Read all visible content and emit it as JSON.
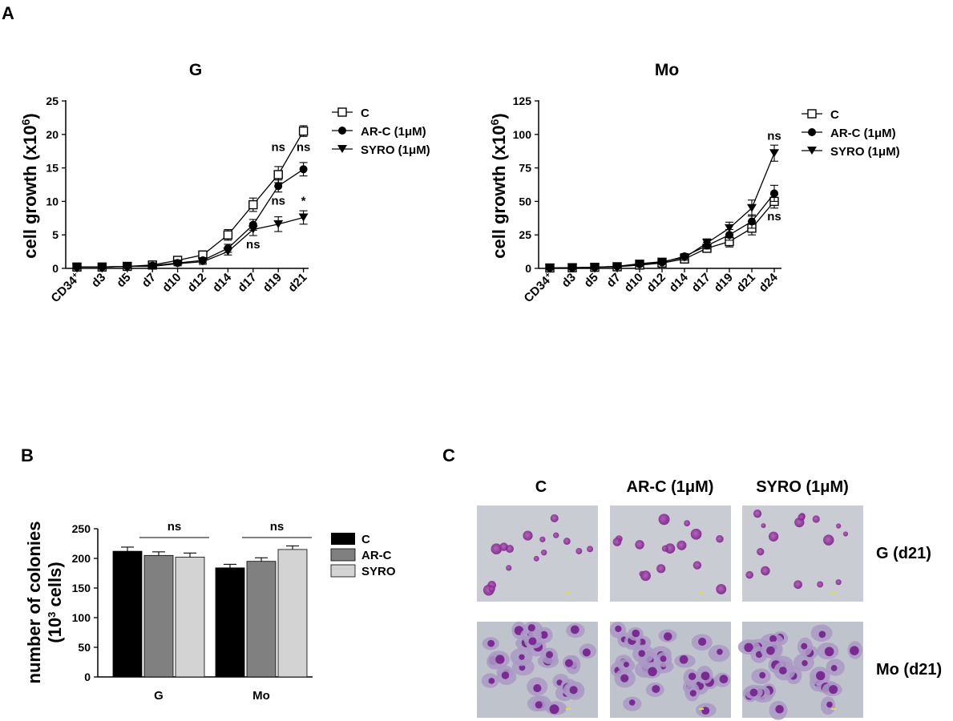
{
  "panel_labels": {
    "a": "A",
    "b": "B",
    "c": "C"
  },
  "chart_data": [
    {
      "id": "growth-g",
      "type": "line",
      "title": "G",
      "ylabel": "cell growth (x10",
      "ylabel_sup": "6",
      "ylabel_end": ")",
      "ylim": [
        0,
        25
      ],
      "yticks": [
        "0",
        "5",
        "10",
        "15",
        "20",
        "25"
      ],
      "categories": [
        "CD34",
        "d3",
        "d5",
        "d7",
        "d10",
        "d12",
        "d14",
        "d17",
        "d19",
        "d21"
      ],
      "category_sup": "+",
      "series": [
        {
          "name": "C",
          "marker": "open-square",
          "values": [
            0.2,
            0.2,
            0.3,
            0.5,
            1.2,
            2.0,
            5.0,
            9.5,
            14.0,
            20.5
          ],
          "errors": [
            0.2,
            0.2,
            0.2,
            0.4,
            0.5,
            0.5,
            0.8,
            1.0,
            1.2,
            0.8
          ]
        },
        {
          "name": "AR-C (1μM)",
          "marker": "filled-circle",
          "values": [
            0.2,
            0.2,
            0.3,
            0.4,
            0.8,
            1.2,
            3.0,
            6.5,
            12.3,
            14.8
          ],
          "errors": [
            0.2,
            0.2,
            0.2,
            0.3,
            0.4,
            0.4,
            0.6,
            0.8,
            0.9,
            1.0
          ]
        },
        {
          "name": "SYRO (1μM)",
          "marker": "filled-triangle-down",
          "values": [
            0.2,
            0.2,
            0.3,
            0.3,
            0.7,
            1.0,
            2.5,
            5.8,
            6.6,
            7.6
          ],
          "errors": [
            0.2,
            0.2,
            0.2,
            0.3,
            0.3,
            0.4,
            0.5,
            0.9,
            1.1,
            1.0
          ]
        }
      ],
      "annotations": [
        {
          "text": "ns",
          "x": "d19",
          "y": 17.5
        },
        {
          "text": "ns",
          "x": "d21",
          "y": 17.5
        },
        {
          "text": "ns",
          "x": "d19",
          "y": 9.5
        },
        {
          "text": "*",
          "x": "d21",
          "y": 9.5
        },
        {
          "text": "ns",
          "x": "d17",
          "y": 3.0
        }
      ]
    },
    {
      "id": "growth-mo",
      "type": "line",
      "title": "Mo",
      "ylabel": "cell growth (x10",
      "ylabel_sup": "6",
      "ylabel_end": ")",
      "ylim": [
        0,
        125
      ],
      "yticks": [
        "0",
        "25",
        "50",
        "75",
        "100",
        "125"
      ],
      "categories": [
        "CD34",
        "d3",
        "d5",
        "d7",
        "d10",
        "d12",
        "d14",
        "d17",
        "d19",
        "d21",
        "d24"
      ],
      "category_sup": "+",
      "series": [
        {
          "name": "C",
          "marker": "open-square",
          "values": [
            0.3,
            0.5,
            0.8,
            1.2,
            2.5,
            4.0,
            7.0,
            15.0,
            20.0,
            30.0,
            50.0
          ],
          "errors": [
            0.3,
            0.4,
            0.5,
            0.6,
            1.0,
            1.2,
            2.0,
            2.5,
            4.0,
            5.0,
            5.0
          ]
        },
        {
          "name": "AR-C  (1μM)",
          "marker": "filled-circle",
          "values": [
            0.3,
            0.5,
            0.8,
            1.5,
            3.0,
            4.5,
            9.0,
            17.0,
            25.0,
            35.0,
            56.0
          ],
          "errors": [
            0.3,
            0.4,
            0.5,
            0.7,
            1.0,
            1.2,
            2.0,
            2.5,
            4.0,
            5.0,
            6.0
          ]
        },
        {
          "name": "SYRO (1μM)",
          "marker": "filled-triangle-down",
          "values": [
            0.3,
            0.5,
            0.8,
            1.5,
            3.5,
            5.0,
            8.0,
            19.0,
            30.0,
            45.0,
            86.0
          ],
          "errors": [
            0.3,
            0.4,
            0.5,
            0.7,
            1.0,
            1.2,
            2.0,
            3.0,
            4.5,
            6.0,
            6.0
          ]
        }
      ],
      "annotations": [
        {
          "text": "ns",
          "x": "d24",
          "y": 96
        },
        {
          "text": "ns",
          "x": "d24",
          "y": 36
        }
      ]
    },
    {
      "id": "colonies",
      "type": "bar",
      "ylabel_line1": "number of colonies",
      "ylabel_line2": "(10",
      "ylabel_sup": "3",
      "ylabel_end": " cells)",
      "ylim": [
        0,
        250
      ],
      "yticks": [
        "0",
        "50",
        "100",
        "150",
        "200",
        "250"
      ],
      "categories": [
        "G",
        "Mo"
      ],
      "series": [
        {
          "name": "C",
          "color": "#000000",
          "values": [
            212,
            184
          ],
          "errors": [
            7,
            6
          ]
        },
        {
          "name": "AR-C",
          "color": "#808080",
          "values": [
            205,
            195
          ],
          "errors": [
            6,
            6
          ]
        },
        {
          "name": "SYRO",
          "color": "#d3d3d3",
          "values": [
            202,
            215
          ],
          "errors": [
            7,
            6
          ]
        }
      ],
      "annotations": [
        {
          "text": "ns",
          "category": "G"
        },
        {
          "text": "ns",
          "category": "Mo"
        }
      ]
    }
  ],
  "micrographs": {
    "columns": [
      "C",
      "AR-C (1μM)",
      "SYRO (1μM)"
    ],
    "rows": [
      "G (d21)",
      "Mo (d21)"
    ]
  }
}
